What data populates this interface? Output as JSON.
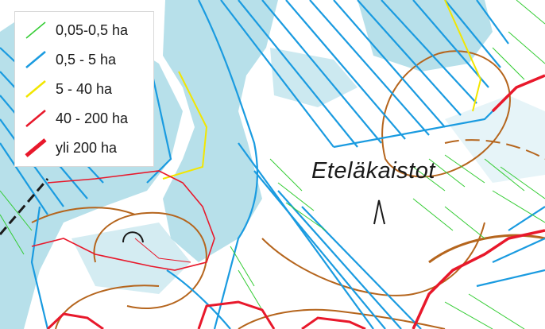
{
  "legend": {
    "items": [
      {
        "label": "0,05-0,5 ha",
        "color": "#33cc33",
        "weight": "thin"
      },
      {
        "label": "0,5 - 5 ha",
        "color": "#1a9be0",
        "weight": "medium"
      },
      {
        "label": "5 - 40 ha",
        "color": "#f2e600",
        "weight": "medium"
      },
      {
        "label": "40 - 200 ha",
        "color": "#e8182b",
        "weight": "medium"
      },
      {
        "label": "yli 200 ha",
        "color": "#e8182b",
        "weight": "thick"
      }
    ]
  },
  "map": {
    "place_name": "Eteläkaistot",
    "symbols": [
      "fell-symbol",
      "hollow-symbol"
    ],
    "colors": {
      "water": "#b7e0ea",
      "contour": "#b5651d",
      "ditch_small": "#33cc33",
      "ditch_medium": "#1a9be0",
      "ditch_large": "#f2e600",
      "ditch_major": "#e8182b"
    }
  }
}
